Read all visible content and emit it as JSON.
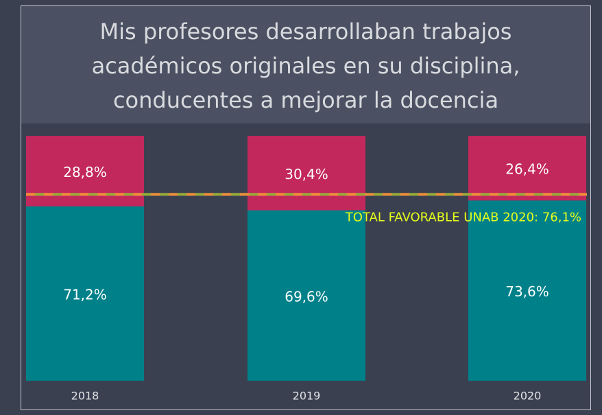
{
  "chart_data": {
    "type": "stacked_bar",
    "title": [
      "Mis profesores desarrollaban trabajos",
      "académicos originales en su disciplina,",
      "conducentes a mejorar la docencia"
    ],
    "categories": [
      "2018",
      "2019",
      "2020"
    ],
    "series": [
      {
        "color": "#00818a",
        "values": [
          71.2,
          69.6,
          73.6
        ],
        "value_labels": [
          "71,2%",
          "69,6%",
          "73,6%"
        ]
      },
      {
        "color": "#c2285c",
        "values": [
          28.8,
          30.4,
          26.4
        ],
        "value_labels": [
          "28,8%",
          "30,4%",
          "26,4%"
        ]
      }
    ],
    "ylim": [
      0,
      100
    ],
    "reference_line": {
      "value": 76.1,
      "label": "TOTAL FAVORABLE UNAB 2020: 76,1%",
      "colors": [
        "#f0913a",
        "#9aab3a"
      ],
      "label_color": "#e6ff1a"
    }
  }
}
